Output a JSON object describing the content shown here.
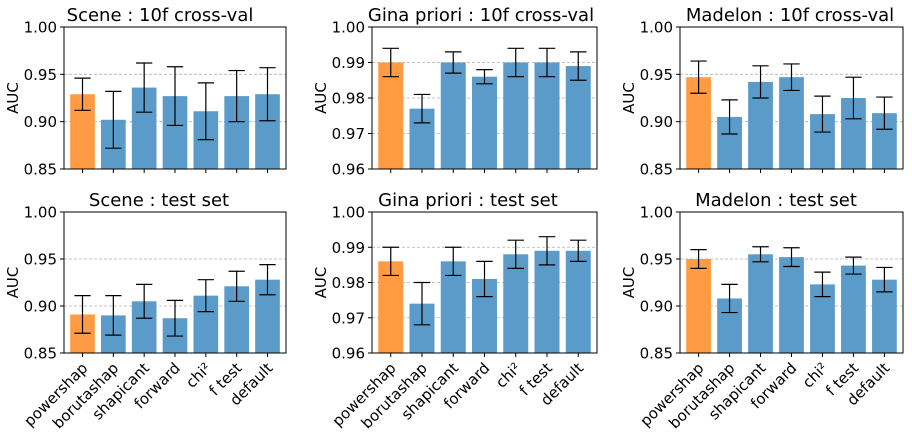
{
  "colors": {
    "highlight": "#ff9b43",
    "bar": "#5b9bc9",
    "grid": "#b0b0b0",
    "errorbar": "#000000"
  },
  "chart_data": [
    {
      "type": "bar",
      "title": "Scene : 10f cross-val",
      "ylabel": "AUC",
      "ylim": [
        0.85,
        1.0
      ],
      "yticks": [
        "0.85",
        "0.90",
        "0.95",
        "1.00"
      ],
      "grid": "horizontal dashed",
      "categories": [
        "powershap",
        "borutashap",
        "shapicant",
        "forward",
        "chi²",
        "f test",
        "default"
      ],
      "values": [
        0.929,
        0.902,
        0.936,
        0.927,
        0.911,
        0.927,
        0.929
      ],
      "errors": [
        0.017,
        0.03,
        0.026,
        0.031,
        0.03,
        0.027,
        0.028
      ],
      "highlight_index": 0
    },
    {
      "type": "bar",
      "title": "Gina priori : 10f cross-val",
      "ylabel": "AUC",
      "ylim": [
        0.96,
        1.0
      ],
      "yticks": [
        "0.96",
        "0.97",
        "0.98",
        "0.99",
        "1.00"
      ],
      "grid": "horizontal dashed",
      "categories": [
        "powershap",
        "borutashap",
        "shapicant",
        "forward",
        "chi²",
        "f test",
        "default"
      ],
      "values": [
        0.99,
        0.977,
        0.99,
        0.986,
        0.99,
        0.99,
        0.989
      ],
      "errors": [
        0.004,
        0.004,
        0.003,
        0.002,
        0.004,
        0.004,
        0.004
      ],
      "highlight_index": 0
    },
    {
      "type": "bar",
      "title": "Madelon : 10f cross-val",
      "ylabel": "AUC",
      "ylim": [
        0.85,
        1.0
      ],
      "yticks": [
        "0.85",
        "0.90",
        "0.95",
        "1.00"
      ],
      "grid": "horizontal dashed",
      "categories": [
        "powershap",
        "borutashap",
        "shapicant",
        "forward",
        "chi²",
        "f test",
        "default"
      ],
      "values": [
        0.947,
        0.905,
        0.942,
        0.947,
        0.908,
        0.925,
        0.909
      ],
      "errors": [
        0.017,
        0.018,
        0.017,
        0.014,
        0.019,
        0.022,
        0.017
      ],
      "highlight_index": 0
    },
    {
      "type": "bar",
      "title": "Scene : test set",
      "ylabel": "AUC",
      "ylim": [
        0.85,
        1.0
      ],
      "yticks": [
        "0.85",
        "0.90",
        "0.95",
        "1.00"
      ],
      "grid": "horizontal dashed",
      "categories": [
        "powershap",
        "borutashap",
        "shapicant",
        "forward",
        "chi²",
        "f test",
        "default"
      ],
      "values": [
        0.891,
        0.89,
        0.905,
        0.887,
        0.911,
        0.921,
        0.928
      ],
      "errors": [
        0.02,
        0.021,
        0.018,
        0.019,
        0.017,
        0.016,
        0.016
      ],
      "highlight_index": 0
    },
    {
      "type": "bar",
      "title": "Gina priori : test set",
      "ylabel": "AUC",
      "ylim": [
        0.96,
        1.0
      ],
      "yticks": [
        "0.96",
        "0.97",
        "0.98",
        "0.99",
        "1.00"
      ],
      "grid": "horizontal dashed",
      "categories": [
        "powershap",
        "borutashap",
        "shapicant",
        "forward",
        "chi²",
        "f test",
        "default"
      ],
      "values": [
        0.986,
        0.974,
        0.986,
        0.981,
        0.988,
        0.989,
        0.989
      ],
      "errors": [
        0.004,
        0.006,
        0.004,
        0.005,
        0.004,
        0.004,
        0.003
      ],
      "highlight_index": 0
    },
    {
      "type": "bar",
      "title": "Madelon : test set",
      "ylabel": "AUC",
      "ylim": [
        0.85,
        1.0
      ],
      "yticks": [
        "0.85",
        "0.90",
        "0.95",
        "1.00"
      ],
      "grid": "horizontal dashed",
      "categories": [
        "powershap",
        "borutashap",
        "shapicant",
        "forward",
        "chi²",
        "f test",
        "default"
      ],
      "values": [
        0.95,
        0.908,
        0.955,
        0.952,
        0.923,
        0.943,
        0.928
      ],
      "errors": [
        0.01,
        0.015,
        0.008,
        0.01,
        0.013,
        0.009,
        0.013
      ],
      "highlight_index": 0
    }
  ]
}
